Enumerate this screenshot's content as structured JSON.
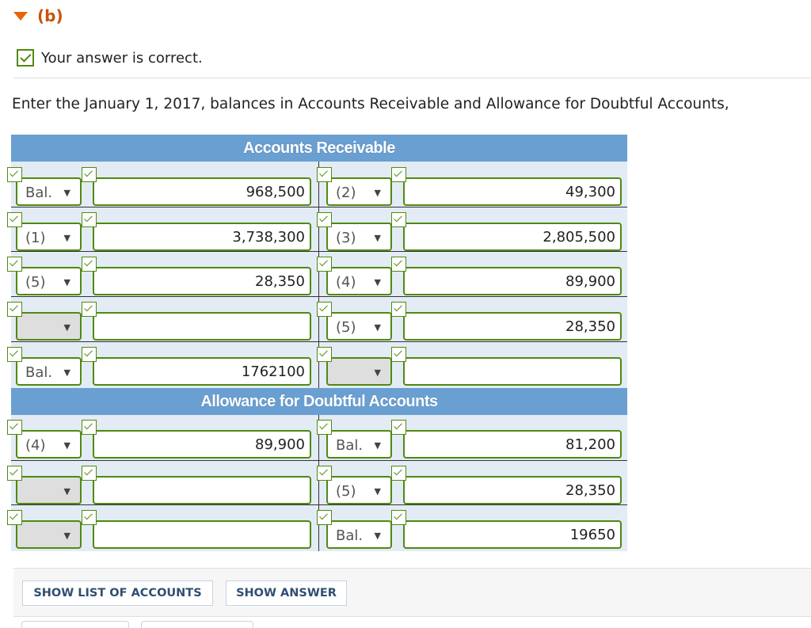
{
  "part": {
    "label": "(b)"
  },
  "result": {
    "text": "Your answer is correct."
  },
  "prompt": "Enter the January 1, 2017, balances in Accounts Receivable and Allowance for Doubtful Accounts,",
  "colors": {
    "accent": "#e8630a",
    "correct": "#4f8a10",
    "header": "#6a9fd2",
    "band": "#e3ebf5"
  },
  "t_accounts": [
    {
      "title": "Accounts Receivable",
      "rows": [
        {
          "left_select": "Bal.",
          "left_value": "968,500",
          "right_select": "(2)",
          "right_value": "49,300"
        },
        {
          "left_select": "(1)",
          "left_value": "3,738,300",
          "right_select": "(3)",
          "right_value": "2,805,500"
        },
        {
          "left_select": "(5)",
          "left_value": "28,350",
          "right_select": "(4)",
          "right_value": "89,900"
        },
        {
          "left_select": "",
          "left_value": "",
          "right_select": "(5)",
          "right_value": "28,350"
        },
        {
          "left_select": "Bal.",
          "left_value": "1762100",
          "right_select": "",
          "right_value": ""
        }
      ]
    },
    {
      "title": "Allowance for Doubtful Accounts",
      "rows": [
        {
          "left_select": "(4)",
          "left_value": "89,900",
          "right_select": "Bal.",
          "right_value": "81,200"
        },
        {
          "left_select": "",
          "left_value": "",
          "right_select": "(5)",
          "right_value": "28,350"
        },
        {
          "left_select": "",
          "left_value": "",
          "right_select": "Bal.",
          "right_value": "19650"
        }
      ]
    }
  ],
  "buttons": {
    "list": "SHOW LIST OF ACCOUNTS",
    "answer": "SHOW ANSWER"
  }
}
